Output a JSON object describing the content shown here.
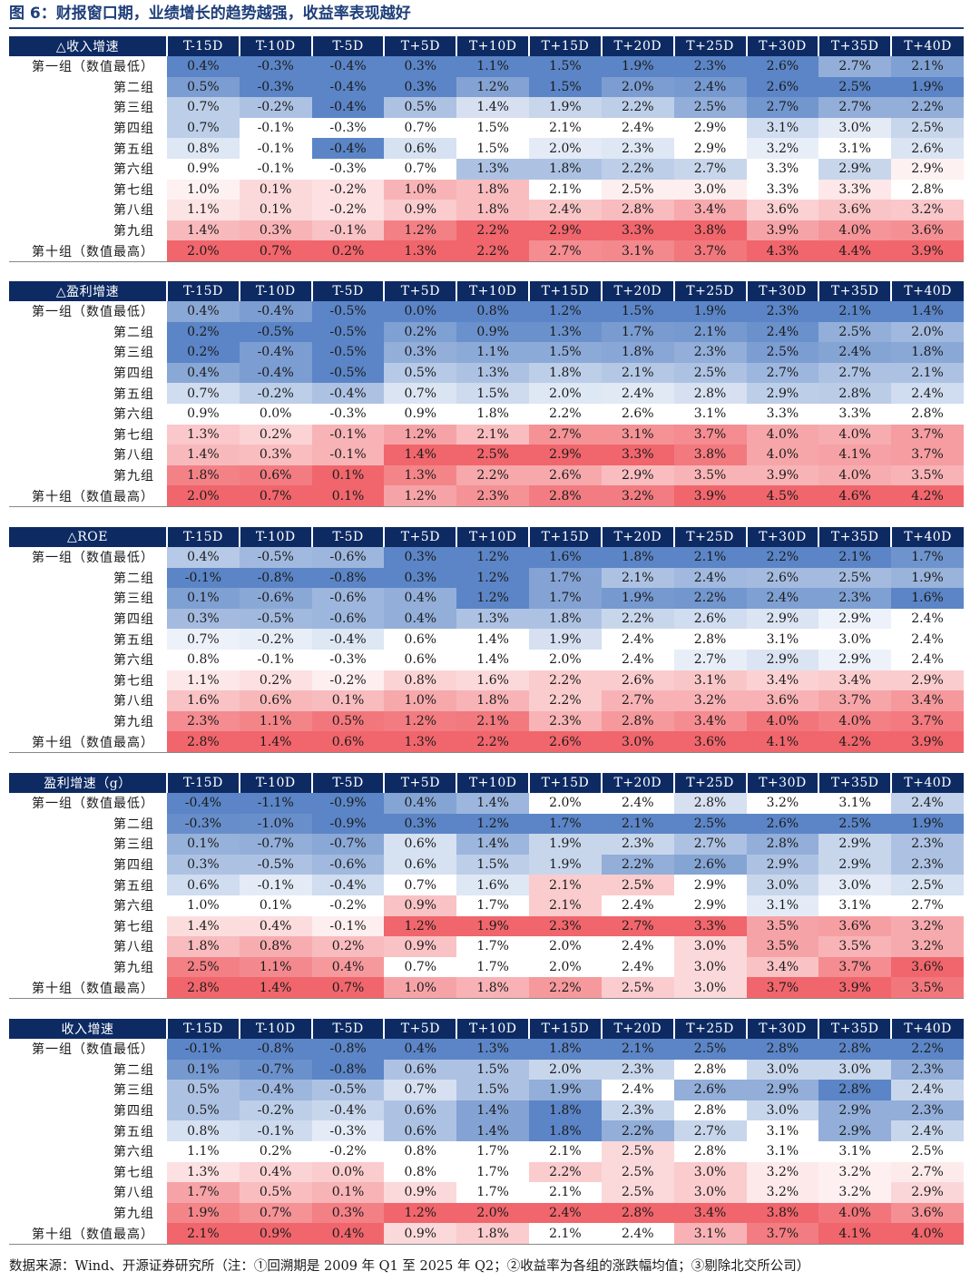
{
  "figure": {
    "title": "图 6：财报窗口期，业绩增长的趋势越强，收益率表现越好",
    "source": "数据来源：Wind、开源证券研究所（注：①回溯期是 2009 年 Q1 至 2025 年 Q2；②收益率为各组的涨跌幅均值；③剔除北交所公司）"
  },
  "columns": [
    "T-15D",
    "T-10D",
    "T-5D",
    "T+5D",
    "T+10D",
    "T+15D",
    "T+20D",
    "T+25D",
    "T+30D",
    "T+35D",
    "T+40D"
  ],
  "row_labels": [
    "第一组（数值最低）",
    "第二组",
    "第三组",
    "第四组",
    "第五组",
    "第六组",
    "第七组",
    "第八组",
    "第九组",
    "第十组（数值最高）"
  ],
  "colors": {
    "header_bg": "#0d2a63",
    "low": "#5b85c6",
    "mid": "#ffffff",
    "high": "#f0666c",
    "title": "#1f3f7a"
  },
  "panels": [
    {
      "name": "△收入增速",
      "rows": [
        [
          "0.4%",
          "-0.3%",
          "-0.4%",
          "0.3%",
          "1.1%",
          "1.5%",
          "1.9%",
          "2.3%",
          "2.6%",
          "2.7%",
          "2.1%"
        ],
        [
          "0.5%",
          "-0.3%",
          "-0.4%",
          "0.3%",
          "1.2%",
          "1.5%",
          "2.0%",
          "2.4%",
          "2.6%",
          "2.5%",
          "1.9%"
        ],
        [
          "0.7%",
          "-0.2%",
          "-0.4%",
          "0.5%",
          "1.4%",
          "1.9%",
          "2.2%",
          "2.5%",
          "2.7%",
          "2.7%",
          "2.2%"
        ],
        [
          "0.7%",
          "-0.1%",
          "-0.3%",
          "0.7%",
          "1.5%",
          "2.1%",
          "2.4%",
          "2.9%",
          "3.1%",
          "3.0%",
          "2.5%"
        ],
        [
          "0.8%",
          "-0.1%",
          "-0.4%",
          "0.6%",
          "1.5%",
          "2.0%",
          "2.3%",
          "2.9%",
          "3.2%",
          "3.1%",
          "2.6%"
        ],
        [
          "0.9%",
          "-0.1%",
          "-0.3%",
          "0.7%",
          "1.3%",
          "1.8%",
          "2.2%",
          "2.7%",
          "3.3%",
          "2.9%",
          "2.9%"
        ],
        [
          "1.0%",
          "0.1%",
          "-0.2%",
          "1.0%",
          "1.8%",
          "2.1%",
          "2.5%",
          "3.0%",
          "3.3%",
          "3.3%",
          "2.8%"
        ],
        [
          "1.1%",
          "0.1%",
          "-0.2%",
          "0.9%",
          "1.8%",
          "2.4%",
          "2.8%",
          "3.4%",
          "3.6%",
          "3.6%",
          "3.2%"
        ],
        [
          "1.4%",
          "0.3%",
          "-0.1%",
          "1.2%",
          "2.2%",
          "2.9%",
          "3.3%",
          "3.8%",
          "3.9%",
          "4.0%",
          "3.6%"
        ],
        [
          "2.0%",
          "0.7%",
          "0.2%",
          "1.3%",
          "2.2%",
          "2.7%",
          "3.1%",
          "3.7%",
          "4.3%",
          "4.4%",
          "3.9%"
        ]
      ]
    },
    {
      "name": "△盈利增速",
      "rows": [
        [
          "0.4%",
          "-0.4%",
          "-0.5%",
          "0.0%",
          "0.8%",
          "1.2%",
          "1.5%",
          "1.9%",
          "2.3%",
          "2.1%",
          "1.4%"
        ],
        [
          "0.2%",
          "-0.5%",
          "-0.5%",
          "0.2%",
          "0.9%",
          "1.3%",
          "1.7%",
          "2.1%",
          "2.4%",
          "2.5%",
          "2.0%"
        ],
        [
          "0.2%",
          "-0.4%",
          "-0.5%",
          "0.3%",
          "1.1%",
          "1.5%",
          "1.8%",
          "2.3%",
          "2.5%",
          "2.4%",
          "1.8%"
        ],
        [
          "0.4%",
          "-0.4%",
          "-0.5%",
          "0.5%",
          "1.3%",
          "1.8%",
          "2.1%",
          "2.5%",
          "2.7%",
          "2.7%",
          "2.1%"
        ],
        [
          "0.7%",
          "-0.2%",
          "-0.4%",
          "0.7%",
          "1.5%",
          "2.0%",
          "2.4%",
          "2.8%",
          "2.9%",
          "2.8%",
          "2.4%"
        ],
        [
          "0.9%",
          "0.0%",
          "-0.3%",
          "0.9%",
          "1.8%",
          "2.2%",
          "2.6%",
          "3.1%",
          "3.3%",
          "3.3%",
          "2.8%"
        ],
        [
          "1.3%",
          "0.2%",
          "-0.1%",
          "1.2%",
          "2.1%",
          "2.7%",
          "3.1%",
          "3.7%",
          "4.0%",
          "4.0%",
          "3.7%"
        ],
        [
          "1.4%",
          "0.3%",
          "-0.1%",
          "1.4%",
          "2.5%",
          "2.9%",
          "3.3%",
          "3.8%",
          "4.0%",
          "4.1%",
          "3.7%"
        ],
        [
          "1.8%",
          "0.6%",
          "0.1%",
          "1.3%",
          "2.2%",
          "2.6%",
          "2.9%",
          "3.5%",
          "3.9%",
          "4.0%",
          "3.5%"
        ],
        [
          "2.0%",
          "0.7%",
          "0.1%",
          "1.2%",
          "2.3%",
          "2.8%",
          "3.2%",
          "3.9%",
          "4.5%",
          "4.6%",
          "4.2%"
        ]
      ]
    },
    {
      "name": "△ROE",
      "rows": [
        [
          "0.4%",
          "-0.5%",
          "-0.6%",
          "0.3%",
          "1.2%",
          "1.6%",
          "1.8%",
          "2.1%",
          "2.2%",
          "2.1%",
          "1.7%"
        ],
        [
          "-0.1%",
          "-0.8%",
          "-0.8%",
          "0.3%",
          "1.2%",
          "1.7%",
          "2.1%",
          "2.4%",
          "2.6%",
          "2.5%",
          "1.9%"
        ],
        [
          "0.1%",
          "-0.6%",
          "-0.6%",
          "0.4%",
          "1.2%",
          "1.7%",
          "1.9%",
          "2.2%",
          "2.4%",
          "2.3%",
          "1.6%"
        ],
        [
          "0.3%",
          "-0.5%",
          "-0.6%",
          "0.4%",
          "1.3%",
          "1.8%",
          "2.2%",
          "2.6%",
          "2.9%",
          "2.9%",
          "2.4%"
        ],
        [
          "0.7%",
          "-0.2%",
          "-0.4%",
          "0.6%",
          "1.4%",
          "1.9%",
          "2.4%",
          "2.8%",
          "3.1%",
          "3.0%",
          "2.4%"
        ],
        [
          "0.8%",
          "-0.1%",
          "-0.3%",
          "0.6%",
          "1.4%",
          "2.0%",
          "2.4%",
          "2.7%",
          "2.9%",
          "2.9%",
          "2.4%"
        ],
        [
          "1.1%",
          "0.2%",
          "-0.2%",
          "0.8%",
          "1.6%",
          "2.2%",
          "2.6%",
          "3.1%",
          "3.4%",
          "3.4%",
          "2.9%"
        ],
        [
          "1.6%",
          "0.6%",
          "0.1%",
          "1.0%",
          "1.8%",
          "2.2%",
          "2.7%",
          "3.2%",
          "3.6%",
          "3.7%",
          "3.4%"
        ],
        [
          "2.3%",
          "1.1%",
          "0.5%",
          "1.2%",
          "2.1%",
          "2.3%",
          "2.8%",
          "3.4%",
          "4.0%",
          "4.0%",
          "3.7%"
        ],
        [
          "2.8%",
          "1.4%",
          "0.6%",
          "1.3%",
          "2.2%",
          "2.6%",
          "3.0%",
          "3.6%",
          "4.1%",
          "4.2%",
          "3.9%"
        ]
      ]
    },
    {
      "name": "盈利增速（g）",
      "rows": [
        [
          "-0.4%",
          "-1.1%",
          "-0.9%",
          "0.4%",
          "1.4%",
          "2.0%",
          "2.4%",
          "2.8%",
          "3.2%",
          "3.1%",
          "2.4%"
        ],
        [
          "-0.3%",
          "-1.0%",
          "-0.9%",
          "0.3%",
          "1.2%",
          "1.7%",
          "2.1%",
          "2.5%",
          "2.6%",
          "2.5%",
          "1.9%"
        ],
        [
          "0.1%",
          "-0.7%",
          "-0.7%",
          "0.6%",
          "1.4%",
          "1.9%",
          "2.3%",
          "2.7%",
          "2.8%",
          "2.9%",
          "2.3%"
        ],
        [
          "0.3%",
          "-0.5%",
          "-0.6%",
          "0.6%",
          "1.5%",
          "1.9%",
          "2.2%",
          "2.6%",
          "2.9%",
          "2.9%",
          "2.3%"
        ],
        [
          "0.6%",
          "-0.1%",
          "-0.4%",
          "0.7%",
          "1.6%",
          "2.1%",
          "2.5%",
          "2.9%",
          "3.0%",
          "3.0%",
          "2.5%"
        ],
        [
          "1.0%",
          "0.1%",
          "-0.2%",
          "0.9%",
          "1.7%",
          "2.1%",
          "2.4%",
          "2.9%",
          "3.1%",
          "3.1%",
          "2.7%"
        ],
        [
          "1.4%",
          "0.4%",
          "-0.1%",
          "1.2%",
          "1.9%",
          "2.3%",
          "2.7%",
          "3.3%",
          "3.5%",
          "3.6%",
          "3.2%"
        ],
        [
          "1.8%",
          "0.8%",
          "0.2%",
          "0.9%",
          "1.7%",
          "2.0%",
          "2.4%",
          "3.0%",
          "3.5%",
          "3.5%",
          "3.2%"
        ],
        [
          "2.5%",
          "1.1%",
          "0.4%",
          "0.7%",
          "1.7%",
          "2.0%",
          "2.4%",
          "3.0%",
          "3.4%",
          "3.7%",
          "3.6%"
        ],
        [
          "2.8%",
          "1.4%",
          "0.7%",
          "1.0%",
          "1.8%",
          "2.2%",
          "2.5%",
          "3.0%",
          "3.7%",
          "3.9%",
          "3.5%"
        ]
      ]
    },
    {
      "name": "收入增速",
      "rows": [
        [
          "-0.1%",
          "-0.8%",
          "-0.8%",
          "0.4%",
          "1.3%",
          "1.8%",
          "2.1%",
          "2.5%",
          "2.8%",
          "2.8%",
          "2.2%"
        ],
        [
          "0.1%",
          "-0.7%",
          "-0.8%",
          "0.6%",
          "1.5%",
          "2.0%",
          "2.3%",
          "2.8%",
          "3.0%",
          "3.0%",
          "2.3%"
        ],
        [
          "0.5%",
          "-0.4%",
          "-0.5%",
          "0.7%",
          "1.5%",
          "1.9%",
          "2.4%",
          "2.6%",
          "2.9%",
          "2.8%",
          "2.4%"
        ],
        [
          "0.5%",
          "-0.2%",
          "-0.4%",
          "0.6%",
          "1.4%",
          "1.8%",
          "2.3%",
          "2.8%",
          "3.0%",
          "2.9%",
          "2.3%"
        ],
        [
          "0.8%",
          "-0.1%",
          "-0.3%",
          "0.6%",
          "1.4%",
          "1.8%",
          "2.2%",
          "2.7%",
          "3.1%",
          "2.9%",
          "2.4%"
        ],
        [
          "1.1%",
          "0.2%",
          "-0.2%",
          "0.8%",
          "1.7%",
          "2.1%",
          "2.5%",
          "2.8%",
          "3.1%",
          "3.1%",
          "2.5%"
        ],
        [
          "1.3%",
          "0.4%",
          "0.0%",
          "0.8%",
          "1.7%",
          "2.2%",
          "2.5%",
          "3.0%",
          "3.2%",
          "3.2%",
          "2.7%"
        ],
        [
          "1.7%",
          "0.5%",
          "0.1%",
          "0.9%",
          "1.7%",
          "2.1%",
          "2.5%",
          "3.0%",
          "3.2%",
          "3.2%",
          "2.9%"
        ],
        [
          "1.9%",
          "0.7%",
          "0.3%",
          "1.2%",
          "2.0%",
          "2.4%",
          "2.8%",
          "3.4%",
          "3.8%",
          "4.0%",
          "3.6%"
        ],
        [
          "2.1%",
          "0.9%",
          "0.4%",
          "0.9%",
          "1.8%",
          "2.1%",
          "2.4%",
          "3.1%",
          "3.7%",
          "4.1%",
          "4.0%"
        ]
      ]
    }
  ]
}
